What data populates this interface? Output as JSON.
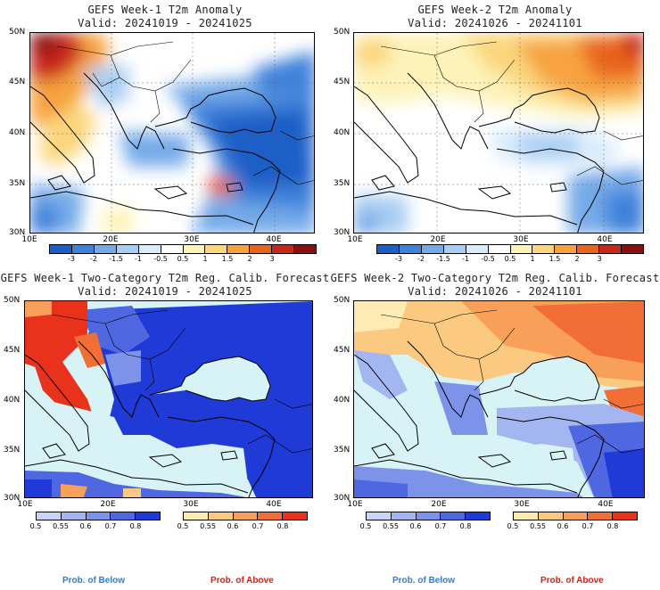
{
  "panels": [
    {
      "id": "p1",
      "title1": "GEFS Week-1 T2m Anomaly",
      "title2": "Valid: 20241019 - 20241025"
    },
    {
      "id": "p2",
      "title1": "GEFS Week-2 T2m Anomaly",
      "title2": "Valid: 20241026 - 20241101"
    },
    {
      "id": "p3",
      "title1": "GEFS Week-1 Two-Category T2m Reg. Calib. Forecast",
      "title2": "Valid: 20241019 - 20241025"
    },
    {
      "id": "p4",
      "title1": "GEFS Week-2 Two-Category T2m Reg. Calib. Forecast",
      "title2": "Valid: 20241026 - 20241101"
    }
  ],
  "axes": {
    "lat_labels": [
      "50N",
      "45N",
      "40N",
      "35N",
      "30N"
    ],
    "lon_labels": [
      "10E",
      "20E",
      "30E",
      "40E"
    ]
  },
  "anomaly_colorbar": {
    "labels": [
      "-3",
      "-2",
      "-1.5",
      "-1",
      "-0.5",
      "0.5",
      "1",
      "1.5",
      "2",
      "3"
    ],
    "colors": [
      "#1c5fc6",
      "#3f82da",
      "#74aae8",
      "#a9cdf2",
      "#d9ecfb",
      "#ffffff",
      "#fdf3b8",
      "#fbd67d",
      "#f6a33f",
      "#e8641f",
      "#c8281c",
      "#8b0f0f"
    ]
  },
  "prob_colorbar": {
    "below_labels": [
      "0.5",
      "0.55",
      "0.6",
      "0.7",
      "0.8"
    ],
    "above_labels": [
      "0.5",
      "0.55",
      "0.6",
      "0.7",
      "0.8"
    ],
    "below_colors": [
      "#c9d5f5",
      "#a3b6f0",
      "#7d93ea",
      "#4f67e0",
      "#1f3ad6"
    ],
    "above_colors": [
      "#fdebb3",
      "#fbca80",
      "#f8a05a",
      "#f16f36",
      "#e8321c"
    ],
    "below_title": "Prob. of Below",
    "above_title": "Prob. of Above"
  },
  "colors": {
    "sea_prob": "#d7f3f5",
    "border": "#000000",
    "below_text": "#2a7de0",
    "above_text": "#e01d0c"
  }
}
